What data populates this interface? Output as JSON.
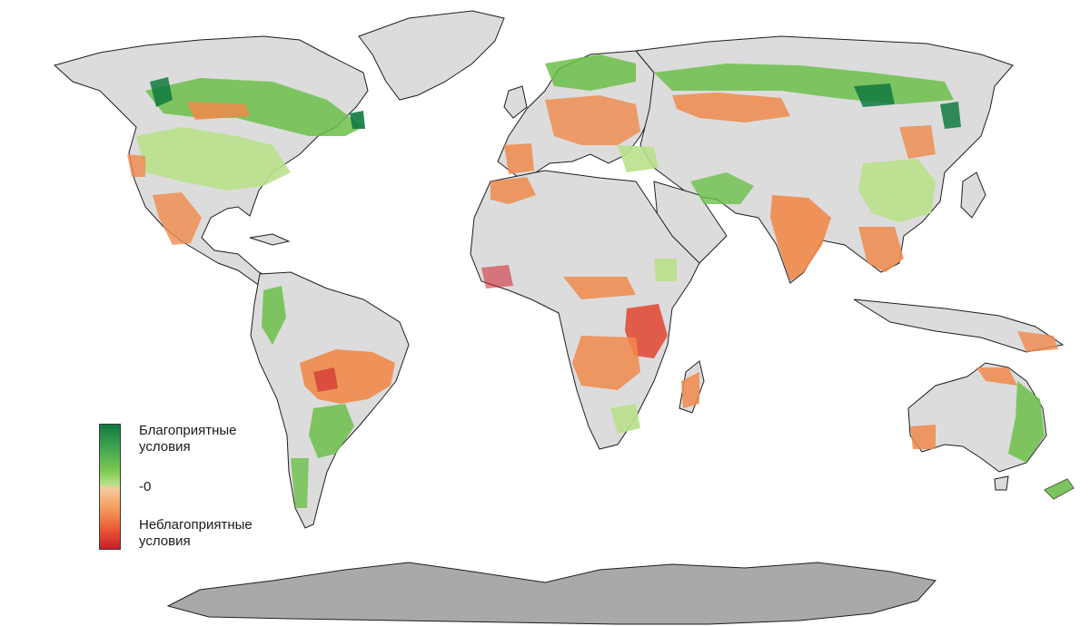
{
  "legend": {
    "favorable": "Благоприятные условия",
    "zero": "-0",
    "unfavorable": "Неблагоприятные условия"
  },
  "colors": {
    "ocean": "#ffffff",
    "land": "#dcdcdc",
    "antarctica": "#a9a9a9",
    "border": "#1e1e1e",
    "strong_favorable": "#0f7a3f",
    "favorable": "#6cc04a",
    "light_favorable": "#b9e08a",
    "neutral": "#f5c890",
    "unfavorable": "#f08a4b",
    "strong_unfavorable": "#cf1f2a"
  }
}
